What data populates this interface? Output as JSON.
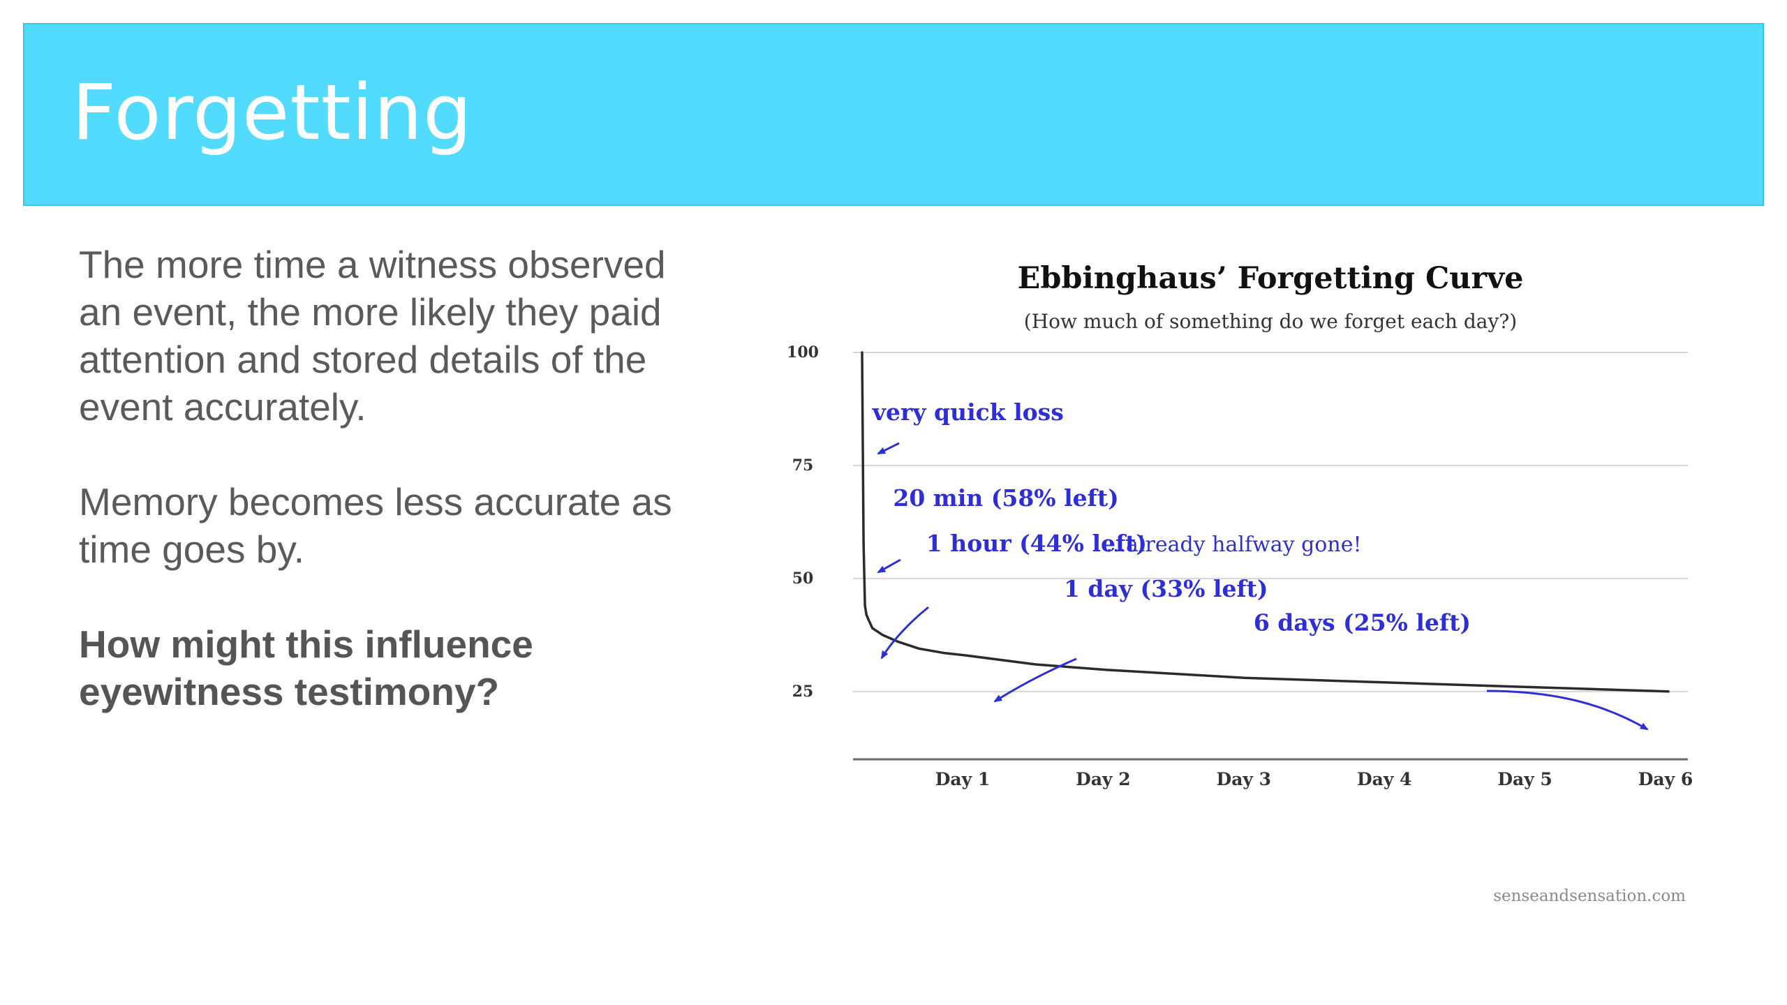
{
  "slide": {
    "title": "Forgetting",
    "paragraph1": "The more time a witness observed an event, the more likely they paid attention and stored details of the event accurately.",
    "paragraph2": "Memory becomes less accurate as time goes by.",
    "question": "How might this influence eyewitness testimony?"
  },
  "colors": {
    "title_bar": "#53dbfe",
    "title_text": "#ffffff",
    "body_text": "#5a5a5a",
    "curve": "#2b2b2b",
    "annotation": "#2e2ed6",
    "gridline": "#d6d6d6"
  },
  "chart_data": {
    "type": "line",
    "title": "Ebbinghaus’ Forgetting Curve",
    "subtitle": "(How much of something do we forget each day?)",
    "xlabel": "",
    "ylabel": "",
    "ylim": [
      10,
      100
    ],
    "xlim": [
      0,
      6
    ],
    "x_unit": "days",
    "yticks": [
      100,
      75,
      50,
      25
    ],
    "xtick_labels": [
      "Day 1",
      "Day 2",
      "Day 3",
      "Day 4",
      "Day 5",
      "Day 6"
    ],
    "grid": true,
    "series": [
      {
        "x": [
          0,
          0.014,
          0.028,
          0.042,
          0.06,
          0.1,
          0.2,
          0.35,
          0.55,
          0.8,
          1.0,
          1.5,
          2.0,
          3.0,
          4.0,
          5.0,
          6.0
        ],
        "values": [
          100,
          58,
          44,
          42,
          41,
          39,
          37.5,
          36,
          34.5,
          33.5,
          33,
          31,
          29.8,
          28,
          27,
          26,
          25
        ]
      }
    ],
    "annotations": [
      {
        "text": "very quick loss",
        "x": 0.1,
        "y": 85
      },
      {
        "text": "20 min (58% left)",
        "x": 0.3,
        "y": 66
      },
      {
        "text": "1 hour (44% left)",
        "x": 0.62,
        "y": 56
      },
      {
        "text": "...already halfway gone!",
        "x": 2.0,
        "y": 56
      },
      {
        "text": "1 day (33% left)",
        "x": 1.7,
        "y": 46
      },
      {
        "text": "6 days (25% left)",
        "x": 3.05,
        "y": 38.5
      }
    ],
    "source": "senseandsensation.com"
  }
}
